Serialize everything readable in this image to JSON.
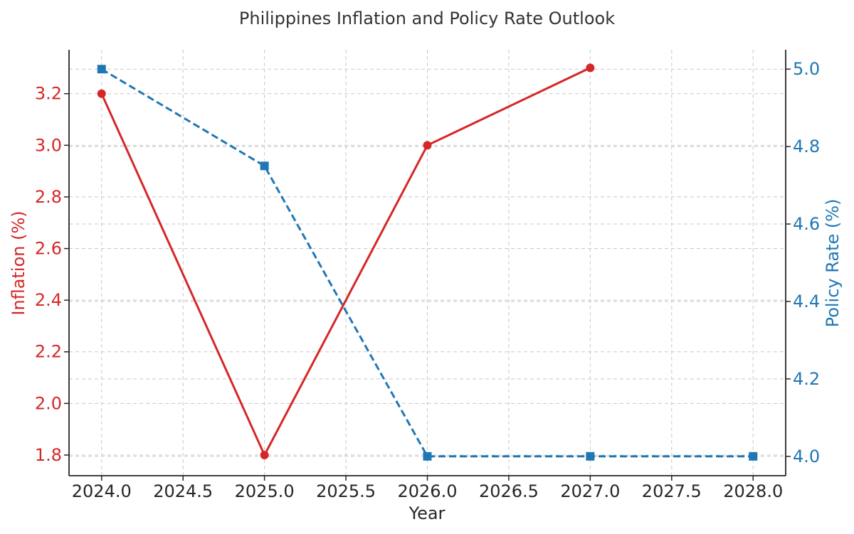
{
  "chart_data": {
    "type": "line",
    "title": "Philippines Inflation and Policy Rate Outlook",
    "xlabel": "Year",
    "ylabel_left": "Inflation (%)",
    "ylabel_right": "Policy Rate (%)",
    "xlim": [
      2023.8,
      2028.2
    ],
    "x_ticks": [
      2024.0,
      2024.5,
      2025.0,
      2025.5,
      2026.0,
      2026.5,
      2027.0,
      2027.5,
      2028.0
    ],
    "x_tick_labels": [
      "2024.0",
      "2024.5",
      "2025.0",
      "2025.5",
      "2026.0",
      "2026.5",
      "2027.0",
      "2027.5",
      "2028.0"
    ],
    "ylim_left": [
      1.72,
      3.37
    ],
    "y_ticks_left": [
      1.8,
      2.0,
      2.2,
      2.4,
      2.6,
      2.8,
      3.0,
      3.2
    ],
    "y_tick_labels_left": [
      "1.8",
      "2.0",
      "2.2",
      "2.4",
      "2.6",
      "2.8",
      "3.0",
      "3.2"
    ],
    "ylim_right": [
      3.95,
      5.05
    ],
    "y_ticks_right": [
      4.0,
      4.2,
      4.4,
      4.6,
      4.8,
      5.0
    ],
    "y_tick_labels_right": [
      "4.0",
      "4.2",
      "4.4",
      "4.6",
      "4.8",
      "5.0"
    ],
    "grid": true,
    "series": [
      {
        "name": "Inflation (%)",
        "axis": "left",
        "color": "#d62728",
        "line_style": "solid",
        "marker": "circle",
        "x": [
          2024,
          2025,
          2026,
          2027
        ],
        "values": [
          3.2,
          1.8,
          3.0,
          3.3
        ]
      },
      {
        "name": "Policy Rate (%)",
        "axis": "right",
        "color": "#1f77b4",
        "line_style": "dashed",
        "marker": "square",
        "x": [
          2024,
          2025,
          2026,
          2027,
          2028
        ],
        "values": [
          5.0,
          4.75,
          4.0,
          4.0,
          4.0
        ]
      }
    ]
  }
}
